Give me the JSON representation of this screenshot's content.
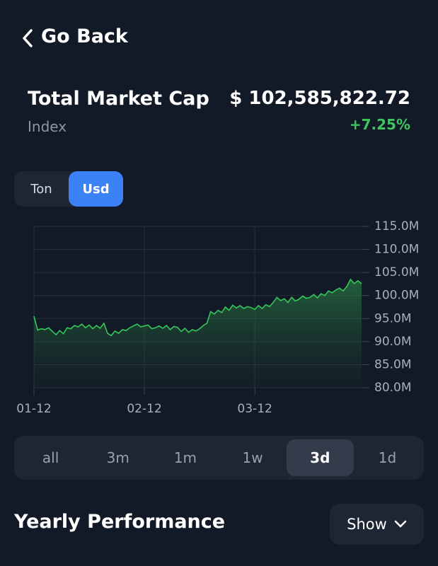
{
  "header": {
    "back": "Go Back"
  },
  "summary": {
    "title": "Total Market Cap",
    "subtitle": "Index",
    "value": "$ 102,585,822.72",
    "change": "+7.25%"
  },
  "toggle": {
    "options": [
      "Ton",
      "Usd"
    ],
    "selected": 1
  },
  "chart_data": {
    "type": "line",
    "color": "#34c759",
    "grid": true,
    "categories": [
      "01-12",
      null,
      null,
      null,
      null,
      null,
      null,
      null,
      null,
      null,
      null,
      null,
      null,
      null,
      null,
      null,
      null,
      null,
      null,
      null,
      null,
      null,
      null,
      null,
      null,
      null,
      null,
      null,
      null,
      null,
      "02-12",
      null,
      null,
      null,
      null,
      null,
      null,
      null,
      null,
      null,
      null,
      null,
      null,
      null,
      null,
      null,
      null,
      null,
      null,
      null,
      null,
      null,
      null,
      null,
      null,
      null,
      null,
      null,
      null,
      null,
      "03-12",
      null,
      null,
      null,
      null,
      null,
      null,
      null,
      null,
      null,
      null,
      null,
      null,
      null,
      null,
      null,
      null,
      null,
      null,
      null,
      null,
      null,
      null,
      null,
      null,
      null,
      null,
      null,
      null,
      null
    ],
    "values": [
      95.5,
      92.5,
      92.8,
      92.6,
      93.0,
      92.2,
      91.5,
      92.4,
      91.7,
      93.0,
      92.8,
      93.5,
      93.2,
      93.8,
      93.0,
      93.6,
      92.8,
      93.5,
      92.9,
      94.0,
      91.8,
      91.3,
      92.3,
      91.8,
      92.6,
      92.4,
      93.0,
      93.4,
      93.8,
      93.2,
      93.4,
      93.6,
      92.8,
      93.0,
      93.4,
      92.9,
      93.5,
      92.6,
      93.3,
      93.1,
      92.2,
      92.9,
      92.0,
      92.6,
      92.3,
      92.8,
      93.5,
      94.0,
      96.5,
      96.0,
      96.8,
      96.3,
      97.5,
      96.8,
      97.9,
      97.3,
      97.8,
      97.2,
      97.6,
      97.4,
      97.0,
      97.8,
      97.2,
      98.0,
      97.6,
      98.5,
      99.6,
      98.9,
      99.3,
      98.5,
      99.6,
      98.8,
      99.2,
      99.9,
      99.4,
      99.6,
      100.2,
      99.5,
      100.4,
      100.0,
      101.0,
      100.6,
      101.2,
      101.6,
      101.0,
      102.0,
      103.5,
      102.6,
      103.2,
      102.6
    ],
    "ylim": [
      80,
      115
    ],
    "yticks": [
      {
        "value": 80,
        "label": "80.0M"
      },
      {
        "value": 85,
        "label": "85.0M"
      },
      {
        "value": 90,
        "label": "90.0M"
      },
      {
        "value": 95,
        "label": "95.0M"
      },
      {
        "value": 100,
        "label": "100.0M"
      },
      {
        "value": 105,
        "label": "105.0M"
      },
      {
        "value": 110,
        "label": "110.0M"
      },
      {
        "value": 115,
        "label": "115.0M"
      }
    ]
  },
  "ranges": {
    "options": [
      "all",
      "3m",
      "1m",
      "1w",
      "3d",
      "1d"
    ],
    "selected": 4
  },
  "section": {
    "title": "Yearly Performance",
    "button": "Show"
  }
}
